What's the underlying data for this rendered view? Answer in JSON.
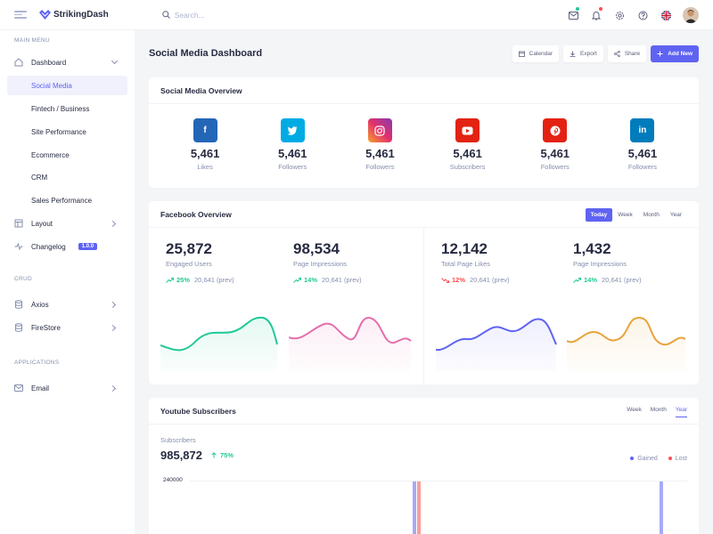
{
  "header": {
    "app_name": "StrikingDash",
    "search_placeholder": "Search...",
    "icons": [
      "mail-icon",
      "bell-icon",
      "settings-icon",
      "help-icon",
      "uk-flag-icon",
      "avatar"
    ]
  },
  "sidebar": {
    "sections": [
      {
        "title": "MAIN MENU",
        "items": [
          {
            "label": "Dashboard",
            "icon": "home-icon",
            "expanded": true
          },
          {
            "label": "Social Media",
            "active": true
          },
          {
            "label": "Fintech / Business"
          },
          {
            "label": "Site Performance"
          },
          {
            "label": "Ecommerce"
          },
          {
            "label": "CRM"
          },
          {
            "label": "Sales Performance"
          },
          {
            "label": "Layout",
            "icon": "layout-icon"
          },
          {
            "label": "Changelog",
            "icon": "activity-icon",
            "badge": "1.0.0"
          }
        ]
      },
      {
        "title": "CRUD",
        "items": [
          {
            "label": "Axios",
            "icon": "database-icon"
          },
          {
            "label": "FireStore",
            "icon": "database-icon"
          }
        ]
      },
      {
        "title": "APPLICATIONS",
        "items": [
          {
            "label": "Email",
            "icon": "mail-icon"
          }
        ]
      }
    ]
  },
  "page": {
    "title": "Social Media Dashboard",
    "buttons": [
      "Calendar",
      "Export",
      "Share",
      "Add New"
    ]
  },
  "social_overview": {
    "title": "Social Media Overview",
    "items": [
      {
        "platform": "facebook",
        "value": "5,461",
        "label": "Likes",
        "color": "#2366b8"
      },
      {
        "platform": "twitter",
        "value": "5,461",
        "label": "Followers",
        "color": "#00abe4"
      },
      {
        "platform": "instagram",
        "value": "5,461",
        "label": "Followers",
        "color": "#c13584"
      },
      {
        "platform": "youtube",
        "value": "5,461",
        "label": "Subscribers",
        "color": "#e32212"
      },
      {
        "platform": "pinterest",
        "value": "5,461",
        "label": "Followers",
        "color": "#e32212"
      },
      {
        "platform": "linkedin",
        "value": "5,461",
        "label": "Followers",
        "color": "#007cbc"
      }
    ]
  },
  "facebook_overview": {
    "title": "Facebook Overview",
    "tabs": [
      "Today",
      "Week",
      "Month",
      "Year"
    ],
    "active_tab": "Today",
    "stats": [
      {
        "value": "25,872",
        "label": "Engaged Users",
        "change": "25%",
        "direction": "up",
        "prev": "20,641 (prev)",
        "color": "#20c997"
      },
      {
        "value": "98,534",
        "label": "Page Impressions",
        "change": "14%",
        "direction": "up",
        "prev": "20,641 (prev)",
        "color": "#e36fad"
      },
      {
        "value": "12,142",
        "label": "Total Page Likes",
        "change": "12%",
        "direction": "down",
        "prev": "20,641 (prev)",
        "color": "#5f63f2"
      },
      {
        "value": "1,432",
        "label": "Page Impressions",
        "change": "14%",
        "direction": "up",
        "prev": "20,641 (prev)",
        "color": "#e8a33b"
      }
    ]
  },
  "youtube": {
    "title": "Youtube Subscribers",
    "tabs": [
      "Week",
      "Month",
      "Year"
    ],
    "active_tab": "Year",
    "subtitle": "Subscribers",
    "value": "985,872",
    "change": "75%",
    "legend": [
      {
        "label": "Gained",
        "color": "#5f63f2"
      },
      {
        "label": "Lost",
        "color": "#ff4d4f"
      }
    ],
    "y_tick": "240000"
  },
  "colors": {
    "primary": "#5f63f2",
    "success": "#20c997",
    "danger": "#ff4d4f"
  }
}
